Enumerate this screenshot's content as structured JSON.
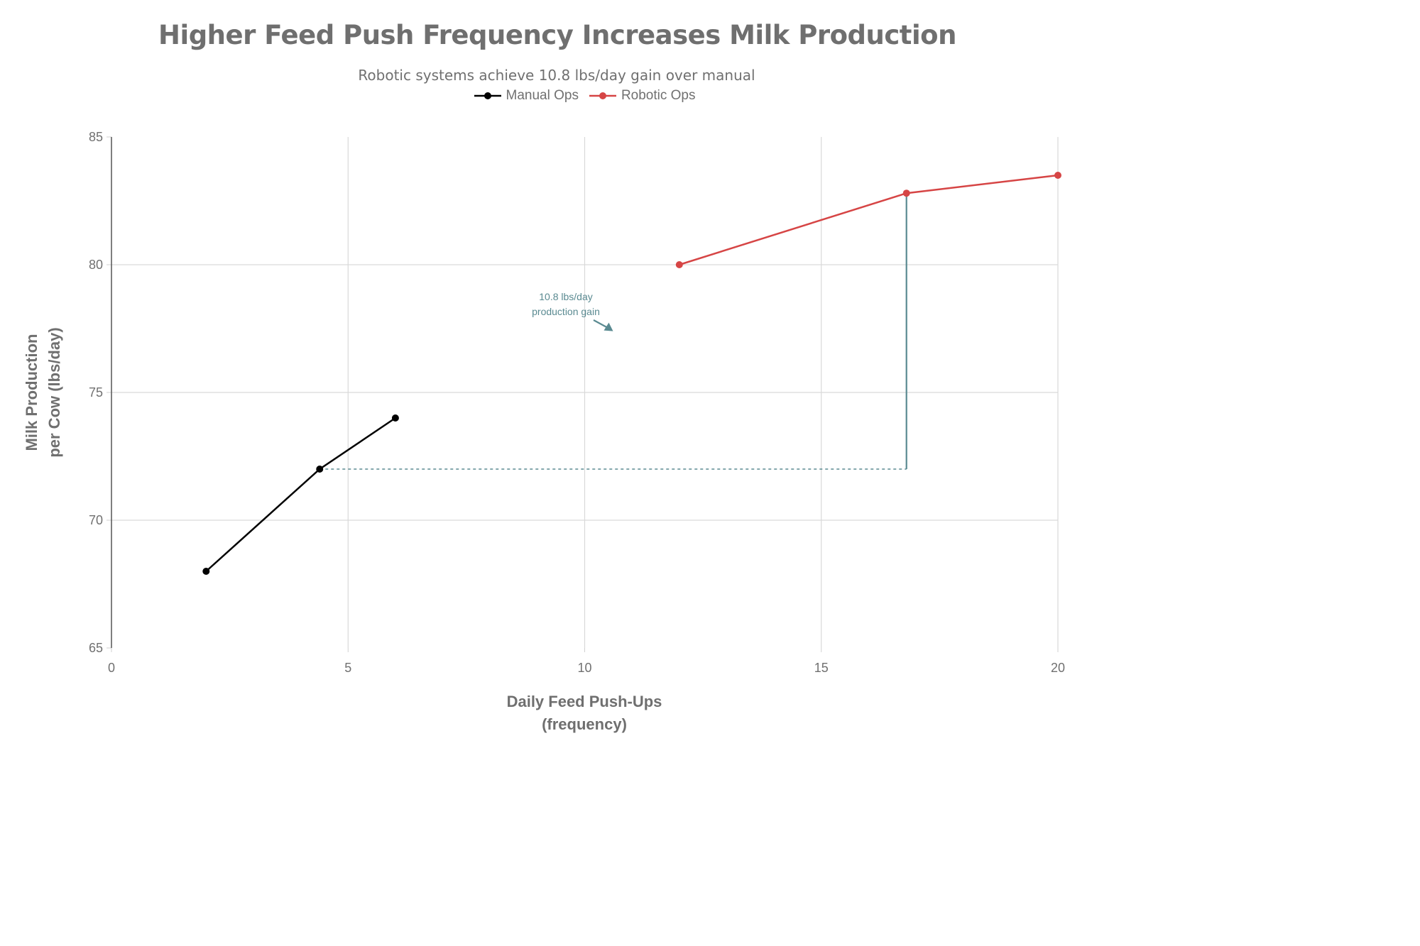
{
  "chart_data": {
    "type": "line",
    "title": "Higher Feed Push Frequency Increases Milk Production",
    "subtitle": "Robotic systems achieve 10.8 lbs/day gain over manual",
    "xlabel": [
      "Daily Feed Push-Ups",
      "(frequency)"
    ],
    "ylabel": [
      "Milk Production",
      "per Cow (lbs/day)"
    ],
    "xlim": [
      0,
      20
    ],
    "ylim": [
      65,
      85
    ],
    "x_ticks": [
      0,
      5,
      10,
      15,
      20
    ],
    "y_ticks": [
      65,
      70,
      75,
      80,
      85
    ],
    "grid": true,
    "legend_position": "top-center",
    "series": [
      {
        "name": "Manual Ops",
        "color": "#000000",
        "x": [
          2,
          4.4,
          6
        ],
        "y": [
          68,
          72,
          74
        ]
      },
      {
        "name": "Robotic Ops",
        "color": "#d64545",
        "x": [
          12,
          16.8,
          20
        ],
        "y": [
          80,
          82.8,
          83.5
        ]
      }
    ],
    "annotations": [
      {
        "text": [
          "10.8 lbs/day",
          "production gain"
        ],
        "color": "#5a8a91",
        "arrow_to": [
          10.6,
          77.4
        ]
      }
    ],
    "reference_lines": [
      {
        "type": "dashed-horizontal",
        "color": "#5a8a91",
        "x_from": 4.4,
        "x_to": 16.8,
        "y": 72
      },
      {
        "type": "vertical",
        "color": "#5a8a91",
        "x": 16.8,
        "y_from": 72,
        "y_to": 82.8
      }
    ]
  }
}
